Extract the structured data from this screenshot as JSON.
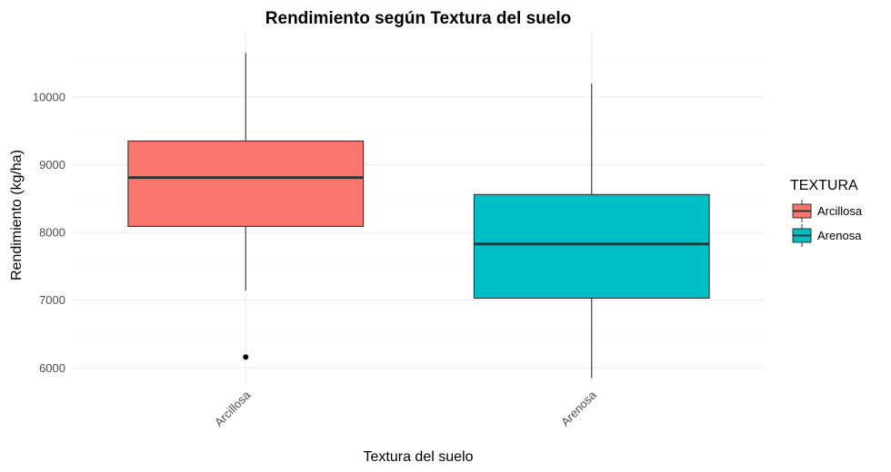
{
  "chart_data": {
    "type": "boxplot",
    "title": "Rendimiento según Textura del suelo",
    "xlabel": "Textura del suelo",
    "ylabel": "Rendimiento (kg/ha)",
    "categories": [
      "Arcillosa",
      "Arenosa"
    ],
    "yticks": [
      6000,
      7000,
      8000,
      9000,
      10000
    ],
    "ylim": [
      5750,
      10950
    ],
    "grid": true,
    "legend": {
      "title": "TEXTURA",
      "position": "right",
      "entries": [
        "Arcillosa",
        "Arenosa"
      ]
    },
    "series": [
      {
        "name": "Arcillosa",
        "color": "#F8766D",
        "whisker_low": 7140,
        "q1": 8090,
        "median": 8810,
        "q3": 9350,
        "whisker_high": 10650,
        "outliers": [
          6160
        ]
      },
      {
        "name": "Arenosa",
        "color": "#00BFC4",
        "whisker_low": 5850,
        "q1": 7030,
        "median": 7830,
        "q3": 8560,
        "whisker_high": 10200,
        "outliers": []
      }
    ]
  }
}
